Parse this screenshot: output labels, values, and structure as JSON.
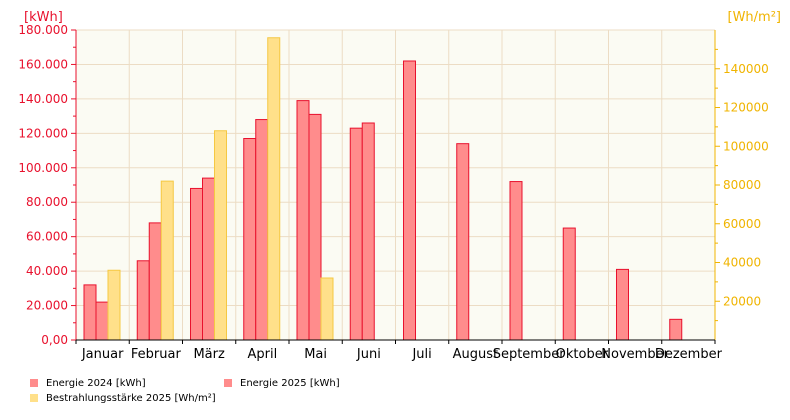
{
  "chart_data": {
    "type": "bar",
    "left_axis_label": "[kWh]",
    "right_axis_label": "[Wh/m²]",
    "categories": [
      "Januar",
      "Februar",
      "März",
      "April",
      "Mai",
      "Juni",
      "Juli",
      "August",
      "September",
      "Oktober",
      "November",
      "Dezember"
    ],
    "left_ylim": [
      0,
      180000
    ],
    "left_ticks": [
      0,
      20000,
      40000,
      60000,
      80000,
      100000,
      120000,
      140000,
      160000,
      180000
    ],
    "left_tick_labels": [
      "0,00",
      "20.000",
      "40.000",
      "60.000",
      "80.000",
      "100.000",
      "120.000",
      "140.000",
      "160.000",
      "180.000"
    ],
    "right_ylim": [
      0,
      160000
    ],
    "right_ticks": [
      20000,
      40000,
      60000,
      80000,
      100000,
      120000,
      140000
    ],
    "right_tick_labels": [
      "20000",
      "40000",
      "60000",
      "80000",
      "100000",
      "120000",
      "140000"
    ],
    "grid": true,
    "legend_position": "bottom",
    "series": [
      {
        "name": "Energie 2024 [kWh]",
        "axis": "left",
        "color": "#ff8c8c",
        "stroke": "#e8112d",
        "values": [
          32000,
          46000,
          88000,
          117000,
          139000,
          123000,
          162000,
          114000,
          92000,
          65000,
          41000,
          12000
        ]
      },
      {
        "name": "Energie 2025 [kWh]",
        "axis": "left",
        "color": "#ff8c8c",
        "stroke": "#e8112d",
        "values": [
          22000,
          68000,
          94000,
          128000,
          131000,
          126000,
          null,
          null,
          null,
          null,
          null,
          null
        ]
      },
      {
        "name": "Bestrahlungsstärke 2025 [Wh/m²]",
        "axis": "right",
        "color": "#ffe08a",
        "stroke": "#f5c842",
        "values": [
          36000,
          82000,
          108000,
          156000,
          32000,
          null,
          null,
          null,
          null,
          null,
          null,
          null
        ]
      }
    ]
  }
}
